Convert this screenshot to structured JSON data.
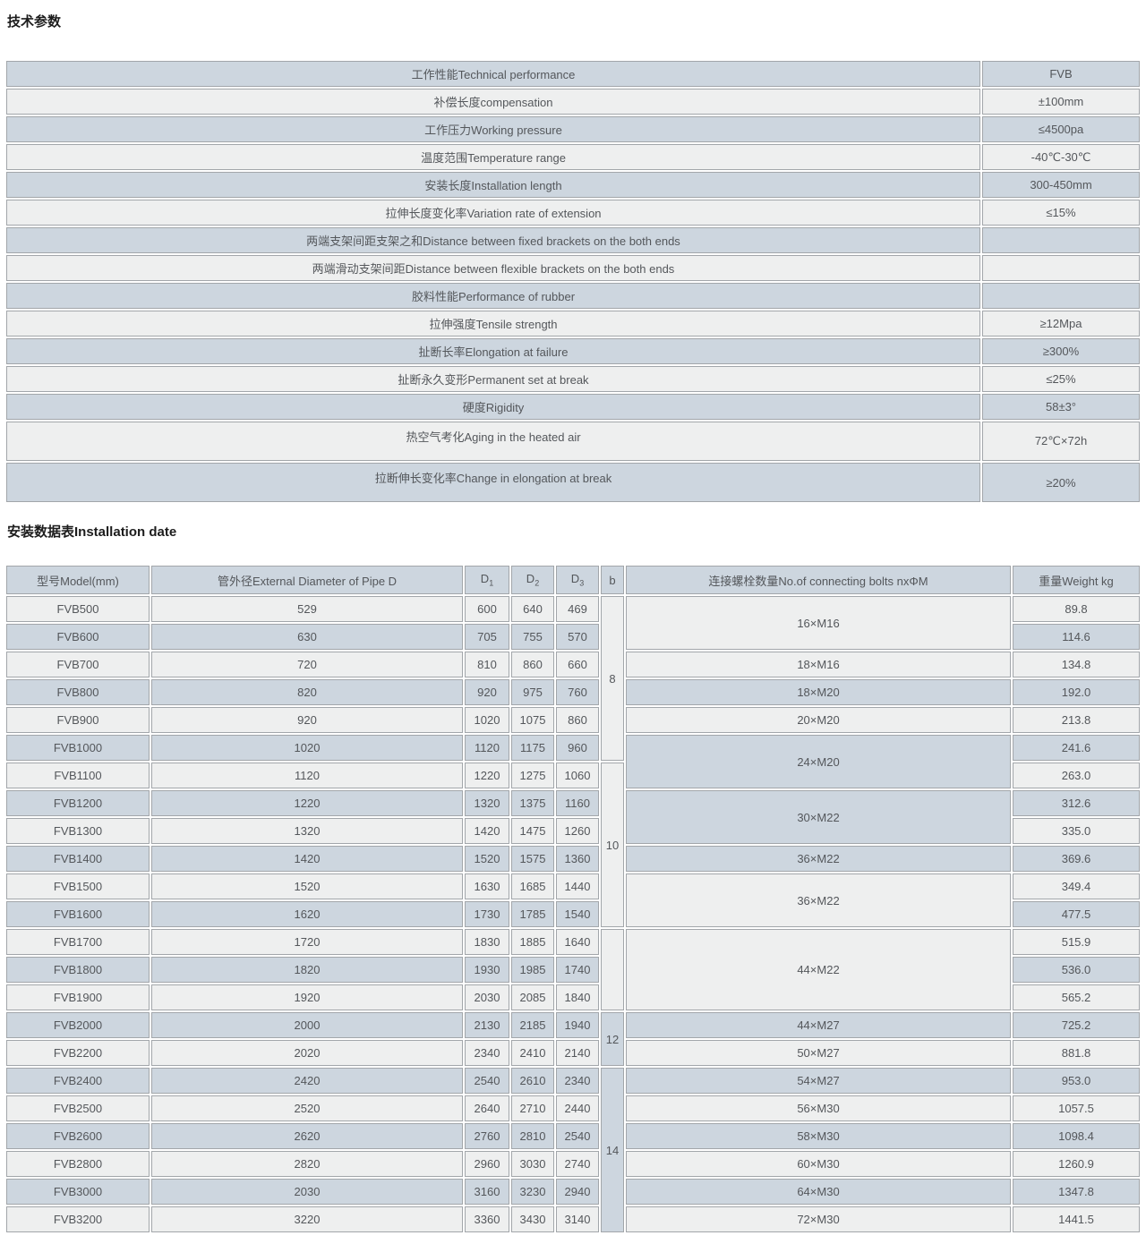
{
  "titles": {
    "tech": "技术参数",
    "install": "安装数据表Installation date"
  },
  "colors": {
    "row_blue": "#cdd6df",
    "row_light": "#eeefef",
    "border": "#a2a6aa",
    "text": "#54575b"
  },
  "tech_table": {
    "rows": [
      {
        "label": "工作性能Technical performance",
        "value": "FVB"
      },
      {
        "label": "补偿长度compensation",
        "value": "±100mm"
      },
      {
        "label": "工作压力Working pressure",
        "value": "≤4500pa"
      },
      {
        "label": "温度范围Temperature range",
        "value": "-40℃-30℃"
      },
      {
        "label": "安装长度Installation length",
        "value": "300-450mm"
      },
      {
        "label": "拉伸长度变化率Variation rate of extension",
        "value": "≤15%"
      },
      {
        "label": "两端支架间距支架之和Distance between fixed brackets on the both ends",
        "value": ""
      },
      {
        "label": "两端滑动支架间距Distance between flexible brackets on the both ends",
        "value": ""
      },
      {
        "label": "胶料性能Performance of rubber",
        "value": ""
      },
      {
        "label": "拉伸强度Tensile strength",
        "value": "≥12Mpa"
      },
      {
        "label": "扯断长率Elongation at failure",
        "value": "≥300%"
      },
      {
        "label": "扯断永久变形Permanent set at break",
        "value": "≤25%"
      },
      {
        "label": "硬度Rigidity",
        "value": "58±3°"
      },
      {
        "label": "热空气考化Aging in the heated air",
        "value": "72℃×72h",
        "tall": true
      },
      {
        "label": "拉断伸长变化率Change in elongation at break",
        "value": "≥20%",
        "tall": true
      }
    ]
  },
  "install_table": {
    "headers": [
      {
        "text": "型号Model(mm)"
      },
      {
        "text": "管外径External Diameter of Pipe D"
      },
      {
        "text": "D",
        "sub": "1"
      },
      {
        "text": "D",
        "sub": "2"
      },
      {
        "text": "D",
        "sub": "3"
      },
      {
        "text": "b"
      },
      {
        "text": "连接螺栓数量No.of connecting bolts nxΦM"
      },
      {
        "text": "重量Weight kg"
      }
    ],
    "rows": [
      {
        "model": "FVB500",
        "pipe": "529",
        "d1": "600",
        "d2": "640",
        "d3": "469",
        "weight": "89.8"
      },
      {
        "model": "FVB600",
        "pipe": "630",
        "d1": "705",
        "d2": "755",
        "d3": "570",
        "weight": "114.6"
      },
      {
        "model": "FVB700",
        "pipe": "720",
        "d1": "810",
        "d2": "860",
        "d3": "660",
        "weight": "134.8"
      },
      {
        "model": "FVB800",
        "pipe": "820",
        "d1": "920",
        "d2": "975",
        "d3": "760",
        "weight": "192.0"
      },
      {
        "model": "FVB900",
        "pipe": "920",
        "d1": "1020",
        "d2": "1075",
        "d3": "860",
        "weight": "213.8"
      },
      {
        "model": "FVB1000",
        "pipe": "1020",
        "d1": "1120",
        "d2": "1175",
        "d3": "960",
        "weight": "241.6"
      },
      {
        "model": "FVB1100",
        "pipe": "1120",
        "d1": "1220",
        "d2": "1275",
        "d3": "1060",
        "weight": "263.0"
      },
      {
        "model": "FVB1200",
        "pipe": "1220",
        "d1": "1320",
        "d2": "1375",
        "d3": "1160",
        "weight": "312.6"
      },
      {
        "model": "FVB1300",
        "pipe": "1320",
        "d1": "1420",
        "d2": "1475",
        "d3": "1260",
        "weight": "335.0"
      },
      {
        "model": "FVB1400",
        "pipe": "1420",
        "d1": "1520",
        "d2": "1575",
        "d3": "1360",
        "weight": "369.6"
      },
      {
        "model": "FVB1500",
        "pipe": "1520",
        "d1": "1630",
        "d2": "1685",
        "d3": "1440",
        "weight": "349.4"
      },
      {
        "model": "FVB1600",
        "pipe": "1620",
        "d1": "1730",
        "d2": "1785",
        "d3": "1540",
        "weight": "477.5"
      },
      {
        "model": "FVB1700",
        "pipe": "1720",
        "d1": "1830",
        "d2": "1885",
        "d3": "1640",
        "weight": "515.9"
      },
      {
        "model": "FVB1800",
        "pipe": "1820",
        "d1": "1930",
        "d2": "1985",
        "d3": "1740",
        "weight": "536.0"
      },
      {
        "model": "FVB1900",
        "pipe": "1920",
        "d1": "2030",
        "d2": "2085",
        "d3": "1840",
        "weight": "565.2"
      },
      {
        "model": "FVB2000",
        "pipe": "2000",
        "d1": "2130",
        "d2": "2185",
        "d3": "1940",
        "weight": "725.2"
      },
      {
        "model": "FVB2200",
        "pipe": "2020",
        "d1": "2340",
        "d2": "2410",
        "d3": "2140",
        "weight": "881.8"
      },
      {
        "model": "FVB2400",
        "pipe": "2420",
        "d1": "2540",
        "d2": "2610",
        "d3": "2340",
        "weight": "953.0"
      },
      {
        "model": "FVB2500",
        "pipe": "2520",
        "d1": "2640",
        "d2": "2710",
        "d3": "2440",
        "weight": "1057.5"
      },
      {
        "model": "FVB2600",
        "pipe": "2620",
        "d1": "2760",
        "d2": "2810",
        "d3": "2540",
        "weight": "1098.4"
      },
      {
        "model": "FVB2800",
        "pipe": "2820",
        "d1": "2960",
        "d2": "3030",
        "d3": "2740",
        "weight": "1260.9"
      },
      {
        "model": "FVB3000",
        "pipe": "2030",
        "d1": "3160",
        "d2": "3230",
        "d3": "2940",
        "weight": "1347.8"
      },
      {
        "model": "FVB3200",
        "pipe": "3220",
        "d1": "3360",
        "d2": "3430",
        "d3": "3140",
        "weight": "1441.5"
      }
    ],
    "b_spans": [
      {
        "label": "8",
        "start": 0,
        "rows": 6
      },
      {
        "label": "10",
        "start": 6,
        "rows": 6
      },
      {
        "label": "",
        "start": 12,
        "rows": 3
      },
      {
        "label": "12",
        "start": 15,
        "rows": 2
      },
      {
        "label": "14",
        "start": 17,
        "rows": 6
      }
    ],
    "bolt_spans": [
      {
        "label": "16×M16",
        "start": 0,
        "rows": 2
      },
      {
        "label": "18×M16",
        "start": 2,
        "rows": 1
      },
      {
        "label": "18×M20",
        "start": 3,
        "rows": 1
      },
      {
        "label": "20×M20",
        "start": 4,
        "rows": 1
      },
      {
        "label": "24×M20",
        "start": 5,
        "rows": 2
      },
      {
        "label": "30×M22",
        "start": 7,
        "rows": 2
      },
      {
        "label": "36×M22",
        "start": 9,
        "rows": 1
      },
      {
        "label": "36×M22",
        "start": 10,
        "rows": 2
      },
      {
        "label": "44×M22",
        "start": 12,
        "rows": 3
      },
      {
        "label": "44×M27",
        "start": 15,
        "rows": 1
      },
      {
        "label": "50×M27",
        "start": 16,
        "rows": 1
      },
      {
        "label": "54×M27",
        "start": 17,
        "rows": 1
      },
      {
        "label": "56×M30",
        "start": 18,
        "rows": 1
      },
      {
        "label": "58×M30",
        "start": 19,
        "rows": 1
      },
      {
        "label": "60×M30",
        "start": 20,
        "rows": 1
      },
      {
        "label": "64×M30",
        "start": 21,
        "rows": 1
      },
      {
        "label": "72×M30",
        "start": 22,
        "rows": 1
      }
    ]
  }
}
